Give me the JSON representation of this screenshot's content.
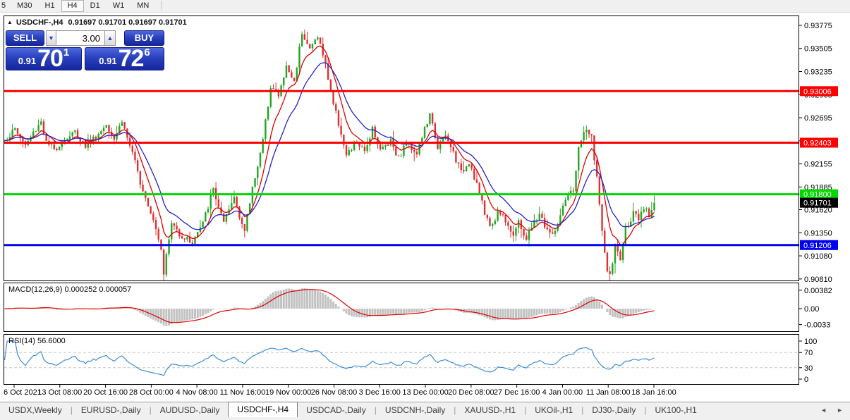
{
  "toolbar": {
    "timeframes": [
      "5",
      "M30",
      "H1",
      "H4",
      "D1",
      "W1",
      "MN"
    ],
    "active": "H4"
  },
  "chart_window": {
    "title_symbol": "USDCHF-,H4",
    "title_ohlc": "0.91697 0.91701 0.91697 0.91701",
    "collapse_icon": "▲"
  },
  "trade_panel": {
    "sell_label": "SELL",
    "buy_label": "BUY",
    "volume": "3.00",
    "vol_down_icon": "▼",
    "vol_up_icon": "▲",
    "sell_price_small": "0.91",
    "sell_price_big": "70",
    "sell_price_sup": "1",
    "buy_price_small": "0.91",
    "buy_price_big": "72",
    "buy_price_sup": "6"
  },
  "chart_data": {
    "type": "candlestick",
    "symbol": "USDCHF-",
    "timeframe": "H4",
    "current_bar_ohlc": {
      "open": "0.91697",
      "high": "0.91701",
      "low": "0.91697",
      "close": "0.91701"
    },
    "price_range": {
      "top": 0.9389,
      "bottom": 0.90784
    },
    "y_ticks": [
      "0.93775",
      "0.93505",
      "0.93235",
      "0.92965",
      "0.92695",
      "0.92425",
      "0.92155",
      "0.91885",
      "0.91620",
      "0.91350",
      "0.91080",
      "0.90810"
    ],
    "levels": [
      {
        "price": 0.93006,
        "label": "0.93006",
        "color": "#ff0000"
      },
      {
        "price": 0.92403,
        "label": "0.92403",
        "color": "#ff0000"
      },
      {
        "price": 0.918,
        "label": "0.91800",
        "color": "#00d800"
      },
      {
        "price": 0.91206,
        "label": "0.91206",
        "color": "#0000ee"
      }
    ],
    "current_price": {
      "value": 0.91701,
      "label": "0.91701",
      "bg": "#000000",
      "fg": "#ffffff"
    },
    "x_labels": [
      "6 Oct 2021",
      "13 Oct 08:00",
      "20 Oct 16:00",
      "28 Oct 00:00",
      "4 Nov 08:00",
      "11 Nov 16:00",
      "19 Nov 00:00",
      "26 Nov 08:00",
      "3 Dec 16:00",
      "13 Dec 00:00",
      "20 Dec 08:00",
      "27 Dec 16:00",
      "4 Jan 00:00",
      "11 Jan 08:00",
      "18 Jan 16:00"
    ],
    "candles": {
      "count": 250,
      "up_color": "#22a522",
      "down_color": "#dd3030",
      "noise": 0.00042,
      "anchors": [
        [
          0,
          0.9243
        ],
        [
          4,
          0.9256
        ],
        [
          8,
          0.9237
        ],
        [
          11,
          0.9252
        ],
        [
          14,
          0.9266
        ],
        [
          16,
          0.924
        ],
        [
          19,
          0.9232
        ],
        [
          23,
          0.9244
        ],
        [
          27,
          0.9253
        ],
        [
          31,
          0.9237
        ],
        [
          36,
          0.925
        ],
        [
          39,
          0.9263
        ],
        [
          42,
          0.9246
        ],
        [
          45,
          0.9266
        ],
        [
          48,
          0.9237
        ],
        [
          52,
          0.9195
        ],
        [
          57,
          0.9152
        ],
        [
          60,
          0.9118
        ],
        [
          61,
          0.9089
        ],
        [
          64,
          0.9146
        ],
        [
          68,
          0.9131
        ],
        [
          72,
          0.9124
        ],
        [
          76,
          0.9146
        ],
        [
          80,
          0.9186
        ],
        [
          84,
          0.9145
        ],
        [
          88,
          0.9177
        ],
        [
          92,
          0.9136
        ],
        [
          95,
          0.9188
        ],
        [
          99,
          0.9242
        ],
        [
          102,
          0.9308
        ],
        [
          105,
          0.9294
        ],
        [
          108,
          0.9329
        ],
        [
          111,
          0.9311
        ],
        [
          114,
          0.9371
        ],
        [
          117,
          0.9349
        ],
        [
          120,
          0.9366
        ],
        [
          123,
          0.9331
        ],
        [
          126,
          0.9286
        ],
        [
          129,
          0.9252
        ],
        [
          131,
          0.9224
        ],
        [
          135,
          0.9241
        ],
        [
          138,
          0.9228
        ],
        [
          141,
          0.9259
        ],
        [
          144,
          0.9231
        ],
        [
          148,
          0.9244
        ],
        [
          151,
          0.9222
        ],
        [
          154,
          0.9241
        ],
        [
          158,
          0.9229
        ],
        [
          161,
          0.9256
        ],
        [
          163,
          0.9272
        ],
        [
          166,
          0.9236
        ],
        [
          169,
          0.9247
        ],
        [
          172,
          0.9229
        ],
        [
          175,
          0.9205
        ],
        [
          178,
          0.9219
        ],
        [
          181,
          0.9192
        ],
        [
          184,
          0.9157
        ],
        [
          187,
          0.9142
        ],
        [
          189,
          0.9161
        ],
        [
          192,
          0.9151
        ],
        [
          195,
          0.9133
        ],
        [
          197,
          0.9146
        ],
        [
          200,
          0.9128
        ],
        [
          202,
          0.9141
        ],
        [
          205,
          0.9158
        ],
        [
          207,
          0.9143
        ],
        [
          210,
          0.9131
        ],
        [
          213,
          0.9153
        ],
        [
          215,
          0.9172
        ],
        [
          218,
          0.9186
        ],
        [
          220,
          0.9232
        ],
        [
          222,
          0.9254
        ],
        [
          225,
          0.9247
        ],
        [
          227,
          0.92
        ],
        [
          229,
          0.9134
        ],
        [
          231,
          0.9091
        ],
        [
          232,
          0.9083
        ],
        [
          234,
          0.912
        ],
        [
          236,
          0.9104
        ],
        [
          238,
          0.914
        ],
        [
          241,
          0.9157
        ],
        [
          243,
          0.9149
        ],
        [
          245,
          0.9163
        ],
        [
          247,
          0.9156
        ],
        [
          249,
          0.91701
        ]
      ]
    },
    "ma_fast": {
      "period": 8,
      "color": "#dd0000"
    },
    "ma_slow": {
      "period": 17,
      "color": "#2323c8"
    },
    "macd": {
      "label": "MACD(12,26,9)",
      "value_main": "0.000252",
      "value_signal": "0.000057",
      "params": [
        12,
        26,
        9
      ],
      "ticks": [
        "0.00382",
        "0.00",
        "-0.0033"
      ],
      "hist_color": "#c2c2c2",
      "signal_color": "#dd0000"
    },
    "rsi": {
      "label": "RSI(14)",
      "value": "56.6000",
      "period": 14,
      "ticks": [
        "100",
        "70",
        "30",
        "0"
      ],
      "level_lines": [
        70,
        30
      ],
      "color": "#3e8ed9"
    }
  },
  "tabs": {
    "items": [
      "USDX,Weekly",
      "EURUSD-,Daily",
      "AUDUSD-,Daily",
      "USDCHF-,H4",
      "USDCAD-,Daily",
      "USDCNH-,Daily",
      "XAUUSD-,H1",
      "UKOil-,H1",
      "DJ30-,Daily",
      "UK100-,H1"
    ],
    "active_index": 3,
    "nav_left_icon": "◄",
    "nav_right_icon": "►"
  }
}
